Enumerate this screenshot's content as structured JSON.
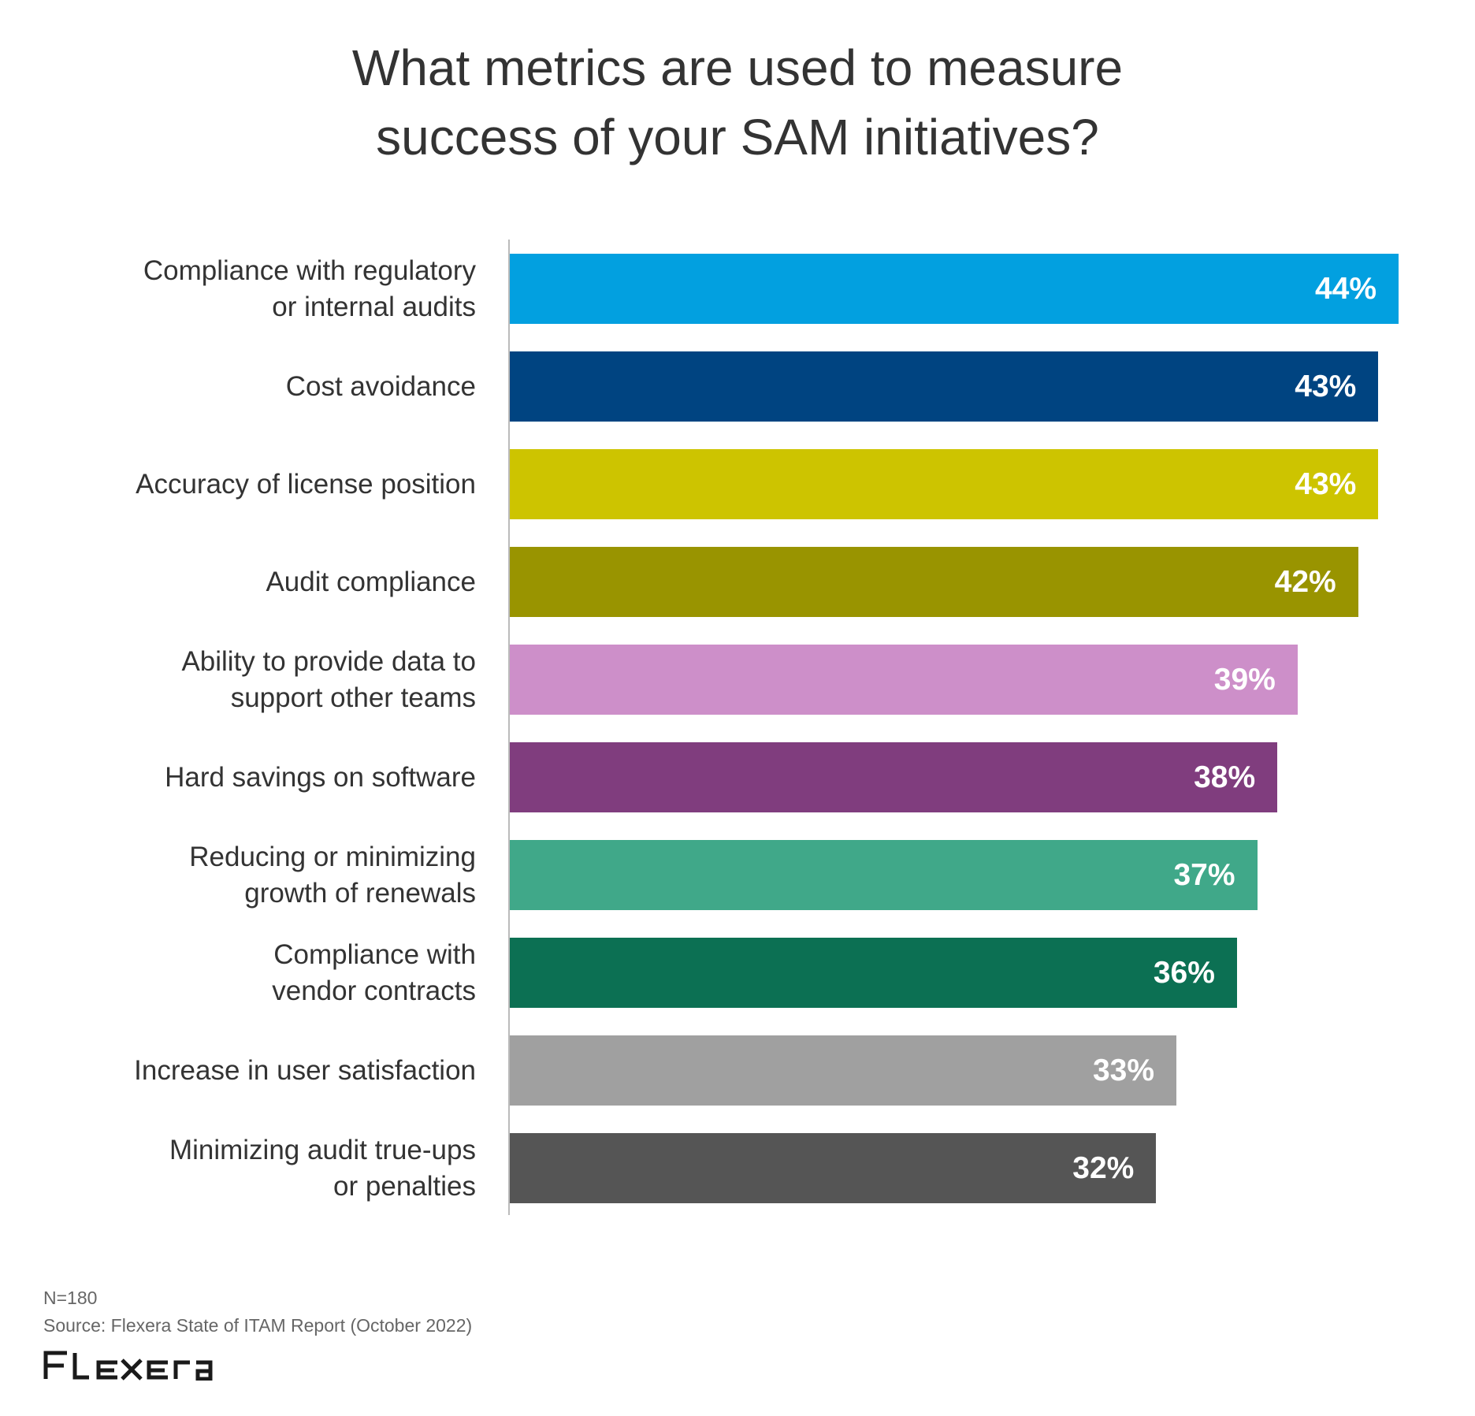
{
  "chart_data": {
    "type": "bar",
    "orientation": "horizontal",
    "title": [
      "What metrics are used to measure",
      "success of your SAM initiatives?"
    ],
    "categories": [
      [
        "Compliance with regulatory",
        "or internal audits"
      ],
      [
        "Cost avoidance"
      ],
      [
        "Accuracy of license position"
      ],
      [
        "Audit compliance"
      ],
      [
        "Ability to provide data to",
        "support other teams"
      ],
      [
        "Hard savings on software"
      ],
      [
        "Reducing or minimizing",
        "growth of renewals"
      ],
      [
        "Compliance with",
        "vendor contracts"
      ],
      [
        "Increase in user satisfaction"
      ],
      [
        "Minimizing audit true-ups",
        "or penalties"
      ]
    ],
    "values": [
      44,
      43,
      43,
      42,
      39,
      38,
      37,
      36,
      33,
      32
    ],
    "value_labels": [
      "44%",
      "43%",
      "43%",
      "42%",
      "39%",
      "38%",
      "37%",
      "36%",
      "33%",
      "32%"
    ],
    "colors": [
      "#02a0e0",
      "#004481",
      "#cdc400",
      "#999400",
      "#cd8fc9",
      "#803d7e",
      "#40a889",
      "#0c7053",
      "#a0a0a0",
      "#555555"
    ],
    "xlim": [
      0,
      44
    ],
    "unit": "%",
    "grid": false,
    "legend": "none"
  },
  "footer": {
    "n": "N=180",
    "source": "Source: Flexera State of ITAM Report (October 2022)"
  },
  "logo": {
    "text": "Flexera"
  }
}
